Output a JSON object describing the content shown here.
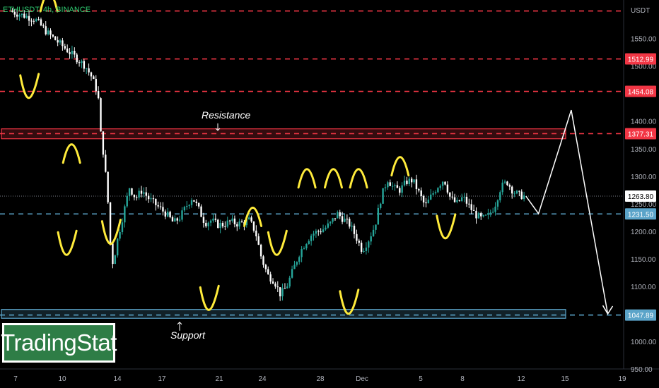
{
  "symbol": "ETHUSDT, 4h, BINANCE",
  "currency": "USDT",
  "logo_text": "TradingStat",
  "annotations": {
    "resistance": "Resistance",
    "support": "Support"
  },
  "colors": {
    "up": "#26a69a",
    "down": "#ffffff",
    "resistance": "#f23645",
    "support": "#5ba4c9",
    "highlight": "#ffeb3b"
  },
  "chart_data": {
    "type": "candlestick",
    "title": "ETHUSDT, 4h, BINANCE",
    "ylabel": "USDT",
    "ylim": [
      950,
      1620
    ],
    "y_ticks": [
      950,
      1000,
      1050,
      1100,
      1150,
      1200,
      1250,
      1300,
      1350,
      1400,
      1500,
      1550
    ],
    "x_ticks": [
      "7",
      "10",
      "14",
      "17",
      "21",
      "24",
      "28",
      "Dec",
      "5",
      "8",
      "12",
      "15",
      "19"
    ],
    "price_levels": [
      {
        "value": 1600,
        "label": "",
        "color": "#f23645"
      },
      {
        "value": 1512.99,
        "label": "1512.99",
        "color": "#f23645"
      },
      {
        "value": 1454.08,
        "label": "1454.08",
        "color": "#f23645"
      },
      {
        "value": 1377.31,
        "label": "1377.31",
        "color": "#f23645"
      },
      {
        "value": 1231.5,
        "label": "1231.50",
        "color": "#5ba4c9"
      },
      {
        "value": 1047.89,
        "label": "1047.89",
        "color": "#5ba4c9"
      }
    ],
    "last_price": {
      "value": 1263.8,
      "label": "1263.80"
    },
    "zones": [
      {
        "name": "Resistance",
        "from": 1368,
        "to": 1386
      },
      {
        "name": "Support",
        "from": 1042,
        "to": 1058
      }
    ],
    "close_path": [
      [
        0,
        1600
      ],
      [
        2,
        1585
      ],
      [
        3,
        1560
      ],
      [
        4,
        1540
      ],
      [
        5,
        1520
      ],
      [
        6,
        1500
      ],
      [
        6.5,
        1480
      ],
      [
        7,
        1450
      ],
      [
        7.2,
        1380
      ],
      [
        7.5,
        1330
      ],
      [
        7.8,
        1250
      ],
      [
        8,
        1170
      ],
      [
        8.2,
        1140
      ],
      [
        8.5,
        1180
      ],
      [
        9,
        1230
      ],
      [
        9.5,
        1280
      ],
      [
        10,
        1260
      ],
      [
        10.5,
        1275
      ],
      [
        11,
        1260
      ],
      [
        11.5,
        1250
      ],
      [
        12,
        1240
      ],
      [
        12.5,
        1230
      ],
      [
        13,
        1215
      ],
      [
        13.5,
        1225
      ],
      [
        14,
        1245
      ],
      [
        14.5,
        1262
      ],
      [
        15,
        1240
      ],
      [
        15.5,
        1215
      ],
      [
        16,
        1220
      ],
      [
        16.5,
        1212
      ],
      [
        17,
        1212
      ],
      [
        17.5,
        1218
      ],
      [
        18,
        1214
      ],
      [
        18.5,
        1215
      ],
      [
        19,
        1220
      ],
      [
        19.5,
        1200
      ],
      [
        20,
        1150
      ],
      [
        20.5,
        1120
      ],
      [
        21,
        1110
      ],
      [
        21.5,
        1085
      ],
      [
        22,
        1100
      ],
      [
        22.5,
        1130
      ],
      [
        23,
        1160
      ],
      [
        23.5,
        1180
      ],
      [
        24,
        1195
      ],
      [
        24.5,
        1200
      ],
      [
        25,
        1205
      ],
      [
        25.5,
        1215
      ],
      [
        26,
        1232
      ],
      [
        26.5,
        1222
      ],
      [
        27,
        1212
      ],
      [
        27.5,
        1190
      ],
      [
        28,
        1165
      ],
      [
        28.5,
        1185
      ],
      [
        29,
        1210
      ],
      [
        29.5,
        1262
      ],
      [
        30,
        1295
      ],
      [
        30.5,
        1278
      ],
      [
        31,
        1275
      ],
      [
        31.5,
        1290
      ],
      [
        32,
        1293
      ],
      [
        32.5,
        1270
      ],
      [
        33,
        1245
      ],
      [
        33.5,
        1265
      ],
      [
        34,
        1282
      ],
      [
        34.5,
        1295
      ],
      [
        35,
        1260
      ],
      [
        35.5,
        1250
      ],
      [
        36,
        1262
      ],
      [
        36.5,
        1245
      ],
      [
        37,
        1230
      ],
      [
        37.5,
        1222
      ],
      [
        38,
        1228
      ],
      [
        38.5,
        1245
      ],
      [
        39,
        1280
      ],
      [
        39.5,
        1290
      ],
      [
        40,
        1272
      ],
      [
        40.5,
        1265
      ],
      [
        41,
        1263.8
      ]
    ],
    "projection": [
      [
        41,
        1263.8
      ],
      [
        42,
        1232
      ],
      [
        44.6,
        1420
      ],
      [
        47.5,
        1050
      ]
    ],
    "highlights_u": [
      [
        1.5,
        1455
      ],
      [
        4.5,
        1170
      ],
      [
        8.0,
        1190
      ],
      [
        15.8,
        1070
      ],
      [
        21.2,
        1170
      ],
      [
        26.9,
        1063
      ],
      [
        34.6,
        1200
      ]
    ],
    "highlights_n": [
      [
        4.9,
        1345
      ],
      [
        19.3,
        1230
      ],
      [
        23.6,
        1300
      ],
      [
        25.7,
        1300
      ],
      [
        27.7,
        1300
      ],
      [
        31.0,
        1322
      ],
      [
        3.1,
        1620
      ]
    ],
    "x_days": {
      "start": 6.5,
      "end": 19.5
    }
  }
}
